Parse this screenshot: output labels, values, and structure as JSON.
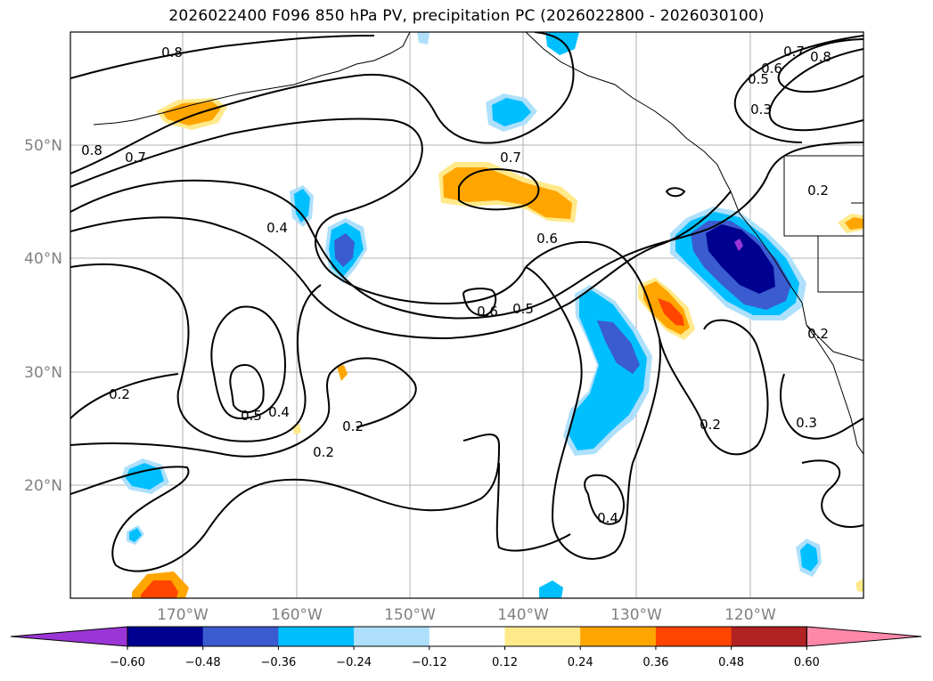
{
  "title": "2026022400 F096 850 hPa PV, precipitation PC (2026022800 - 2026030100)",
  "lat_labels": [
    "50°N",
    "40°N",
    "30°N",
    "20°N"
  ],
  "lon_labels": [
    "170°W",
    "160°W",
    "150°W",
    "140°W",
    "130°W",
    "120°W"
  ],
  "contour_labels": [
    "0.8",
    "0.8",
    "0.7",
    "0.7",
    "0.6",
    "0.6",
    "0.6",
    "0.5",
    "0.5",
    "0.4",
    "0.4",
    "0.4",
    "0.3",
    "0.3",
    "0.2",
    "0.2",
    "0.2",
    "0.2",
    "0.2",
    "0.2",
    "0.7",
    "0.8",
    "0.5"
  ],
  "colorbar": {
    "tick_labels": [
      "−0.60",
      "−0.48",
      "−0.36",
      "−0.24",
      "−0.12",
      "0.12",
      "0.24",
      "0.36",
      "0.48",
      "0.60"
    ],
    "colors": [
      "#9b35d6",
      "#000090",
      "#3a5cd0",
      "#00bfff",
      "#aee0fb",
      "#ffffff",
      "#ffe98a",
      "#ffa500",
      "#ff4500",
      "#b22222",
      "#ff88aa"
    ]
  }
}
